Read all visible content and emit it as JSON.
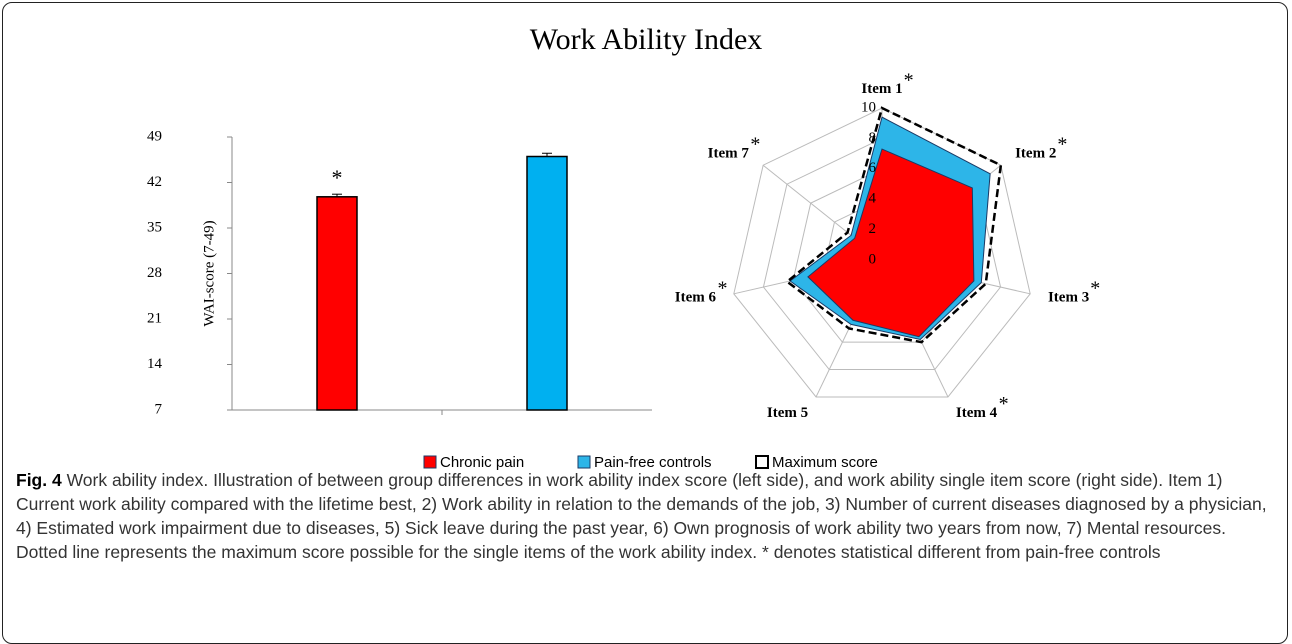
{
  "title": "Work Ability Index",
  "chart_data": [
    {
      "type": "bar",
      "ylabel": "WAI-score (7-49)",
      "categories": [
        null,
        null
      ],
      "values": [
        39.8,
        46.0
      ],
      "errors": [
        0.4,
        0.5
      ],
      "colors": [
        "#ff0000",
        "#00b0f0"
      ],
      "annotations": [
        "*",
        null
      ],
      "ylim": [
        7,
        49
      ],
      "yticks": [
        7,
        14,
        21,
        28,
        35,
        42,
        49
      ]
    },
    {
      "type": "radar",
      "categories": [
        "Item 1",
        "Item 2",
        "Item 3",
        "Item 4",
        "Item 5",
        "Item 6",
        "Item 7"
      ],
      "markers": [
        "*",
        "*",
        "*",
        "*",
        null,
        "*",
        "*"
      ],
      "rlim": [
        0,
        10
      ],
      "rticks": [
        0,
        2,
        4,
        6,
        8,
        10
      ],
      "series": [
        {
          "name": "Chronic pain",
          "color": "#ff0000",
          "values": [
            7.3,
            7.6,
            6.2,
            5.6,
            4.4,
            5.0,
            2.3
          ]
        },
        {
          "name": "Pain-free controls",
          "color": "#2db5e8",
          "values": [
            9.4,
            9.1,
            6.7,
            5.8,
            4.7,
            6.2,
            2.6
          ]
        },
        {
          "name": "Maximum score",
          "color": "#000000",
          "dashed": true,
          "values": [
            10,
            10,
            7,
            6,
            5,
            6.4,
            2.9
          ]
        }
      ]
    }
  ],
  "caption": {
    "label": "Fig. 4",
    "text": "Work ability index. Illustration of between group differences in work ability index score (left side), and work ability single item score (right side). Item 1) Current work ability compared with the lifetime best, 2) Work ability in relation to the demands of the job, 3) Number of current diseases diagnosed by a physician, 4) Estimated work impairment due to diseases, 5) Sick leave during the past year, 6) Own prognosis of work ability two years from now, 7) Mental resources. Dotted line represents the maximum score possible for the single items of the work ability index. * denotes statistical different from pain-free controls"
  }
}
